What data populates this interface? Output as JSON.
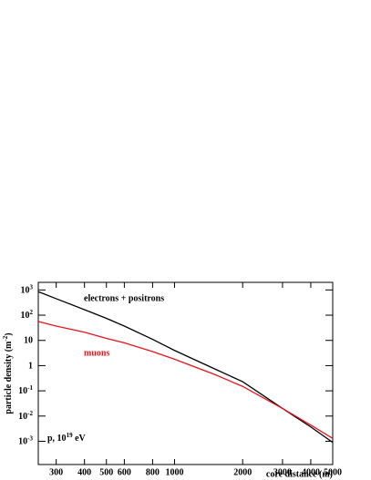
{
  "chart_data": {
    "type": "line",
    "x_label": "core distance (m)",
    "y_label": {
      "text": "particle density (m",
      "sup": "-2",
      "end": ")"
    },
    "annotation": {
      "text": "p, 10",
      "sup": "19",
      "end": " eV"
    },
    "xscale": "log",
    "yscale": "log",
    "xlim": [
      250,
      5000
    ],
    "ylim": [
      0.00012,
      2000
    ],
    "xticks": [
      300,
      400,
      500,
      600,
      800,
      1000,
      2000,
      3000,
      4000,
      5000
    ],
    "yticks": [
      {
        "value": 1000,
        "label": "10",
        "sup": "3"
      },
      {
        "value": 100,
        "label": "10",
        "sup": "2"
      },
      {
        "value": 10,
        "label": "10"
      },
      {
        "value": 1,
        "label": "1"
      },
      {
        "value": 0.1,
        "label": "10",
        "sup": "-1"
      },
      {
        "value": 0.01,
        "label": "10",
        "sup": "-2"
      },
      {
        "value": 0.001,
        "label": "10",
        "sup": "-3"
      }
    ],
    "x": [
      250,
      300,
      400,
      500,
      600,
      800,
      1000,
      1500,
      2000,
      3000,
      4000,
      5000
    ],
    "series": [
      {
        "name": "electrons + positrons",
        "color": "#000000",
        "values": [
          850,
          450,
          165,
          75,
          37,
          11,
          4,
          0.75,
          0.23,
          0.02,
          0.0037,
          0.0009
        ]
      },
      {
        "name": "muons",
        "color": "#e8141a",
        "values": [
          56,
          37,
          21,
          12,
          8,
          3.6,
          1.8,
          0.45,
          0.15,
          0.02,
          0.0044,
          0.0013
        ]
      }
    ]
  }
}
